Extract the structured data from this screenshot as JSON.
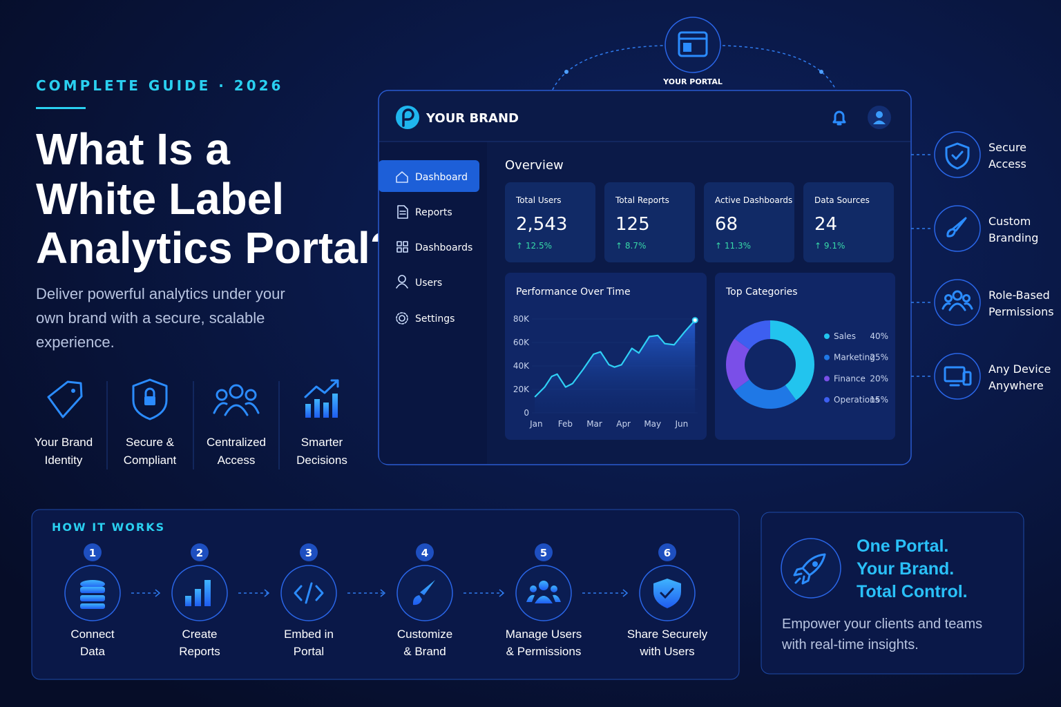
{
  "header": {
    "eyebrow": "COMPLETE GUIDE · 2026",
    "title_lines": [
      "What Is a",
      "White Label",
      "Analytics Portal?"
    ],
    "description_lines": [
      "Deliver powerful analytics under your",
      "own brand with a secure, scalable",
      "experience."
    ]
  },
  "features": [
    {
      "lines": [
        "Your Brand",
        "Identity"
      ]
    },
    {
      "lines": [
        "Secure &",
        "Compliant"
      ]
    },
    {
      "lines": [
        "Centralized",
        "Access"
      ]
    },
    {
      "lines": [
        "Smarter",
        "Decisions"
      ]
    }
  ],
  "portal": {
    "badge": "YOUR PORTAL",
    "brand": "YOUR BRAND",
    "nav": [
      "Dashboard",
      "Reports",
      "Dashboards",
      "Users",
      "Settings"
    ],
    "section_title": "Overview",
    "stats": [
      {
        "label": "Total Users",
        "value": "2,543",
        "change": "↑ 12.5%"
      },
      {
        "label": "Total Reports",
        "value": "125",
        "change": "↑ 8.7%"
      },
      {
        "label": "Active Dashboards",
        "value": "68",
        "change": "↑ 11.3%"
      },
      {
        "label": "Data Sources",
        "value": "24",
        "change": "↑ 9.1%"
      }
    ]
  },
  "benefits": [
    {
      "lines": [
        "Secure",
        "Access"
      ]
    },
    {
      "lines": [
        "Custom",
        "Branding"
      ]
    },
    {
      "lines": [
        "Role-Based",
        "Permissions"
      ]
    },
    {
      "lines": [
        "Any Device",
        "Anywhere"
      ]
    }
  ],
  "how_it_works": {
    "title": "HOW IT WORKS",
    "steps": [
      {
        "number": 1,
        "lines": [
          "Connect",
          "Data"
        ]
      },
      {
        "number": 2,
        "lines": [
          "Create",
          "Reports"
        ]
      },
      {
        "number": 3,
        "lines": [
          "Embed in",
          "Portal"
        ]
      },
      {
        "number": 4,
        "lines": [
          "Customize",
          "& Brand"
        ]
      },
      {
        "number": 5,
        "lines": [
          "Manage Users",
          "& Permissions"
        ]
      },
      {
        "number": 6,
        "lines": [
          "Share Securely",
          "with Users"
        ]
      }
    ]
  },
  "promo": {
    "headline_lines": [
      "One Portal.",
      "Your Brand.",
      "Total Control."
    ],
    "text_lines": [
      "Empower your clients and teams",
      "with real-time insights."
    ]
  },
  "chart_data": [
    {
      "type": "line",
      "title": "Performance Over Time",
      "x": [
        -0.05,
        0.29,
        0.53,
        0.72,
        1.01,
        1.25,
        1.61,
        1.97,
        2.21,
        2.5,
        2.69,
        2.93,
        3.29,
        3.53,
        3.89,
        4.18,
        4.42,
        4.74,
        5.1,
        5.46
      ],
      "values": [
        13500,
        22000,
        31000,
        33000,
        22000,
        25000,
        37000,
        50000,
        52000,
        41000,
        39000,
        41000,
        55000,
        51000,
        65000,
        66000,
        59000,
        58000,
        69000,
        79000
      ],
      "color": "#2fd0f5",
      "xlim": [
        -0.15,
        5.55
      ],
      "xticks": [
        {
          "value": 0,
          "label": "Jan"
        },
        {
          "value": 1,
          "label": "Feb"
        },
        {
          "value": 2,
          "label": "Mar"
        },
        {
          "value": 3,
          "label": "Apr"
        },
        {
          "value": 4,
          "label": "May"
        },
        {
          "value": 5,
          "label": "Jun"
        }
      ],
      "ylim": [
        0,
        82000
      ],
      "yticks": [
        0,
        {
          "value": 20000,
          "label": "20K"
        },
        {
          "value": 40000,
          "label": "40K"
        },
        {
          "value": 60000,
          "label": "60K"
        },
        {
          "value": 80000,
          "label": "80K"
        }
      ],
      "grid": true
    },
    {
      "type": "pie",
      "title": "Top Categories",
      "categories": [
        "Sales",
        "Marketing",
        "Finance",
        "Operations"
      ],
      "values": [
        40,
        25,
        20,
        15
      ],
      "value_labels": [
        "40%",
        "25%",
        "20%",
        "15%"
      ],
      "colors": [
        "#22c4ee",
        "#1f78e6",
        "#7a4fe8",
        "#3d5ff0"
      ]
    }
  ]
}
